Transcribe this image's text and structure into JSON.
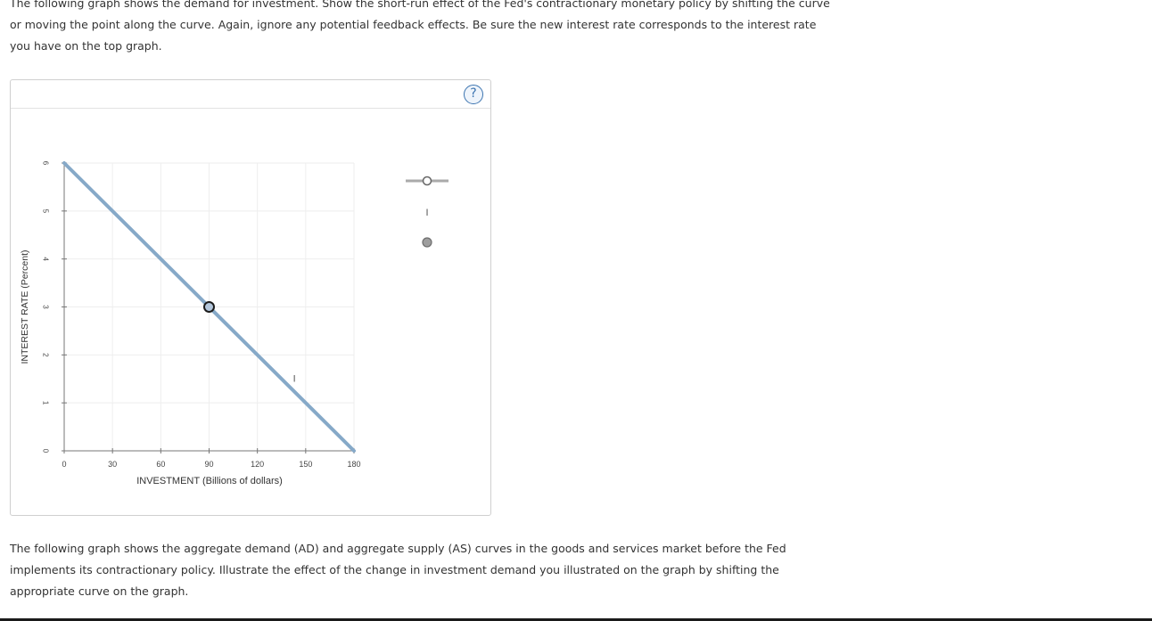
{
  "intro_text": "The following graph shows the demand for investment. Show the short-run effect of the Fed's contractionary monetary policy by shifting the curve or moving the point along the curve. Again, ignore any potential feedback effects. Be sure the new interest rate corresponds to the interest rate you have on the top graph.",
  "help_label": "?",
  "palette": {
    "curve_label": "I",
    "point_symbol": "",
    "curve_color": "#86a9c8",
    "point_color": "#9e9e9e"
  },
  "chart_data": {
    "type": "line",
    "xlabel": "INVESTMENT (Billions of dollars)",
    "ylabel": "INTEREST RATE (Percent)",
    "xlim": [
      0,
      180
    ],
    "ylim": [
      0,
      6
    ],
    "x_ticks": [
      0,
      30,
      60,
      90,
      120,
      150,
      180
    ],
    "y_ticks": [
      0,
      1,
      2,
      3,
      4,
      5,
      6
    ],
    "grid": true,
    "series": [
      {
        "name": "I",
        "x": [
          0,
          180
        ],
        "y": [
          6,
          0
        ],
        "color": "#86a9c8",
        "label_at": [
          143,
          1.5
        ]
      }
    ],
    "points": [
      {
        "x": 90,
        "y": 3
      }
    ]
  },
  "followup_text": "The following graph shows the aggregate demand (AD) and aggregate supply (AS) curves in the goods and services market before the Fed implements its contractionary policy. Illustrate the effect of the change in investment demand you illustrated on the graph by shifting the appropriate curve on the graph."
}
